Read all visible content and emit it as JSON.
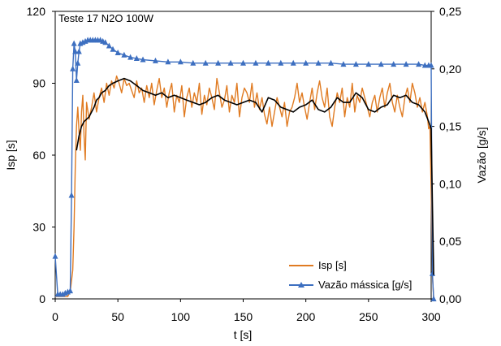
{
  "chart_data": {
    "type": "line",
    "title": "",
    "annotation": "Teste 17 N2O 100W",
    "xlabel": "t [s]",
    "ylabel": "Isp [s]",
    "y2label": "Vazão [g/s]",
    "xlim": [
      0,
      300
    ],
    "ylim": [
      0,
      120
    ],
    "y2lim": [
      0,
      0.25
    ],
    "xticks": [
      "0",
      "50",
      "100",
      "150",
      "200",
      "250",
      "300"
    ],
    "yticks": [
      "0",
      "30",
      "60",
      "90",
      "120"
    ],
    "y2ticks": [
      "0,00",
      "0,05",
      "0,10",
      "0,15",
      "0,20",
      "0,25"
    ],
    "grid": false,
    "legend_position": "bottom-right",
    "colors": {
      "isp": "#e07b22",
      "flow": "#3d6fc0",
      "moving_average": "#000000"
    },
    "series": [
      {
        "name": "Isp [s]",
        "axis": "left",
        "marker": "none",
        "x": [
          0,
          5,
          10,
          12,
          14,
          15,
          16,
          17,
          18,
          19,
          20,
          21,
          22,
          23,
          24,
          25,
          27,
          29,
          31,
          33,
          35,
          37,
          39,
          41,
          43,
          45,
          47,
          49,
          51,
          53,
          55,
          57,
          59,
          61,
          63,
          65,
          67,
          69,
          71,
          73,
          75,
          77,
          79,
          81,
          83,
          85,
          87,
          89,
          91,
          93,
          95,
          97,
          99,
          101,
          103,
          105,
          107,
          109,
          111,
          113,
          115,
          117,
          119,
          121,
          123,
          125,
          127,
          129,
          131,
          133,
          135,
          137,
          139,
          141,
          143,
          145,
          147,
          149,
          151,
          153,
          155,
          157,
          159,
          161,
          163,
          165,
          167,
          169,
          171,
          173,
          175,
          177,
          179,
          181,
          183,
          185,
          187,
          189,
          191,
          193,
          195,
          197,
          199,
          201,
          203,
          205,
          207,
          209,
          211,
          213,
          215,
          217,
          219,
          221,
          223,
          225,
          227,
          229,
          231,
          233,
          235,
          237,
          239,
          241,
          243,
          245,
          247,
          249,
          251,
          253,
          255,
          257,
          259,
          261,
          263,
          265,
          267,
          269,
          271,
          273,
          275,
          277,
          279,
          281,
          283,
          285,
          287,
          289,
          291,
          293,
          295,
          297,
          298,
          299,
          300,
          301,
          302
        ],
        "values": [
          1,
          1,
          1,
          3,
          12,
          30,
          55,
          72,
          80,
          70,
          62,
          78,
          85,
          68,
          58,
          82,
          75,
          80,
          86,
          78,
          84,
          88,
          82,
          90,
          85,
          91,
          88,
          93,
          90,
          86,
          92,
          89,
          90,
          87,
          84,
          91,
          86,
          88,
          82,
          89,
          84,
          90,
          81,
          87,
          92,
          84,
          88,
          80,
          86,
          90,
          78,
          85,
          82,
          89,
          76,
          84,
          88,
          80,
          86,
          82,
          90,
          77,
          85,
          81,
          88,
          84,
          79,
          92,
          86,
          80,
          83,
          89,
          78,
          85,
          82,
          90,
          76,
          84,
          88,
          86,
          82,
          90,
          80,
          86,
          79,
          84,
          77,
          73,
          80,
          72,
          78,
          84,
          80,
          76,
          82,
          72,
          78,
          80,
          84,
          90,
          82,
          86,
          80,
          75,
          82,
          88,
          79,
          86,
          91,
          84,
          80,
          88,
          76,
          72,
          80,
          86,
          82,
          88,
          76,
          84,
          80,
          90,
          78,
          85,
          82,
          88,
          84,
          80,
          76,
          82,
          85,
          78,
          84,
          88,
          80,
          86,
          90,
          82,
          78,
          85,
          80,
          76,
          84,
          88,
          82,
          90,
          86,
          80,
          84,
          78,
          82,
          76,
          71,
          72,
          45,
          10,
          0
        ]
      },
      {
        "name": "Vazão mássica [g/s]",
        "axis": "right",
        "marker": "triangle",
        "x": [
          0,
          2,
          4,
          6,
          8,
          10,
          12,
          13,
          14,
          15,
          16,
          17,
          18,
          19,
          20,
          22,
          24,
          26,
          28,
          30,
          32,
          34,
          36,
          38,
          40,
          43,
          46,
          50,
          55,
          60,
          65,
          70,
          80,
          90,
          100,
          110,
          120,
          130,
          140,
          150,
          160,
          170,
          180,
          190,
          200,
          210,
          220,
          230,
          240,
          250,
          260,
          270,
          280,
          290,
          295,
          298,
          300,
          301,
          302
        ],
        "values": [
          0.037,
          0.004,
          0.004,
          0.004,
          0.005,
          0.006,
          0.007,
          0.09,
          0.2,
          0.222,
          0.215,
          0.19,
          0.205,
          0.215,
          0.222,
          0.223,
          0.224,
          0.225,
          0.225,
          0.225,
          0.225,
          0.225,
          0.225,
          0.224,
          0.223,
          0.22,
          0.217,
          0.214,
          0.212,
          0.21,
          0.209,
          0.208,
          0.207,
          0.206,
          0.206,
          0.205,
          0.205,
          0.205,
          0.205,
          0.205,
          0.205,
          0.205,
          0.205,
          0.205,
          0.205,
          0.205,
          0.205,
          0.204,
          0.204,
          0.204,
          0.204,
          0.204,
          0.204,
          0.204,
          0.203,
          0.203,
          0.203,
          0.022,
          0.0
        ]
      },
      {
        "axis": "left",
        "marker": "none",
        "x": [
          17,
          19,
          21,
          23,
          25,
          27,
          29,
          31,
          33,
          35,
          37,
          40,
          43,
          46,
          50,
          55,
          60,
          65,
          70,
          75,
          80,
          85,
          90,
          95,
          100,
          105,
          110,
          115,
          120,
          125,
          130,
          135,
          140,
          145,
          150,
          155,
          160,
          165,
          170,
          175,
          180,
          185,
          190,
          195,
          200,
          205,
          210,
          215,
          220,
          225,
          230,
          235,
          240,
          245,
          250,
          255,
          260,
          265,
          270,
          275,
          280,
          285,
          290,
          295,
          298,
          300,
          301,
          302
        ],
        "values": [
          62,
          68,
          72,
          74,
          75,
          76,
          78,
          80,
          83,
          84,
          86,
          87,
          89,
          90,
          91,
          92,
          91,
          89,
          87,
          86,
          85,
          86,
          84,
          85,
          84,
          83,
          82,
          81,
          82,
          84,
          85,
          83,
          82,
          81,
          82,
          83,
          82,
          78,
          84,
          83,
          80,
          79,
          78,
          80,
          81,
          83,
          79,
          78,
          80,
          84,
          82,
          82,
          86,
          84,
          79,
          78,
          80,
          81,
          85,
          84,
          85,
          82,
          81,
          78,
          74,
          71,
          40,
          10
        ]
      }
    ]
  }
}
